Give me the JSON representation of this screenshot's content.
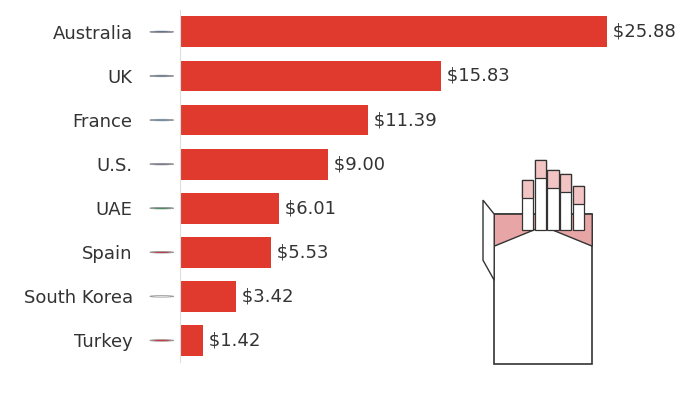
{
  "chart_data": {
    "type": "bar",
    "orientation": "horizontal",
    "categories": [
      "Australia",
      "UK",
      "France",
      "U.S.",
      "UAE",
      "Spain",
      "South Korea",
      "Turkey"
    ],
    "values": [
      25.88,
      15.83,
      11.39,
      9.0,
      6.01,
      5.53,
      3.42,
      1.42
    ],
    "value_labels": [
      "$25.88",
      "$15.83",
      "$11.39",
      "$9.00",
      "$6.01",
      "$5.53",
      "$3.42",
      "$1.42"
    ],
    "color": "#e03a2e",
    "xlim": [
      0,
      25.88
    ],
    "xticks": [],
    "grid": false,
    "data_labels": true,
    "tick_labels": "y"
  }
}
